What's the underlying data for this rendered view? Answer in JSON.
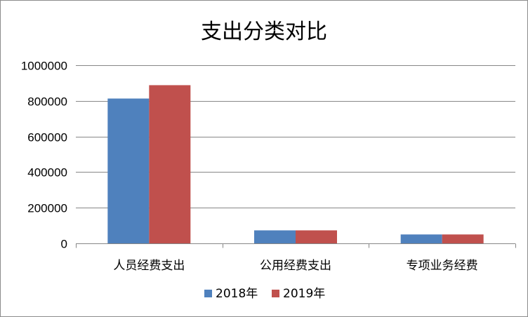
{
  "chart_data": {
    "type": "bar",
    "title": "支出分类对比",
    "xlabel": "",
    "ylabel": "",
    "categories": [
      "人员经费支出",
      "公用经费支出",
      "专项业务经费"
    ],
    "series": [
      {
        "name": "2018年",
        "values": [
          813000,
          73000,
          50000
        ],
        "color": "#4f81bd"
      },
      {
        "name": "2019年",
        "values": [
          888000,
          73000,
          50000
        ],
        "color": "#c0504d"
      }
    ],
    "ylim": [
      0,
      1000000
    ],
    "yticks": [
      0,
      200000,
      400000,
      600000,
      800000,
      1000000
    ],
    "ytick_labels": [
      "0",
      "200000",
      "400000",
      "600000",
      "800000",
      "1000000"
    ],
    "grid": "horizontal",
    "legend_position": "bottom"
  }
}
